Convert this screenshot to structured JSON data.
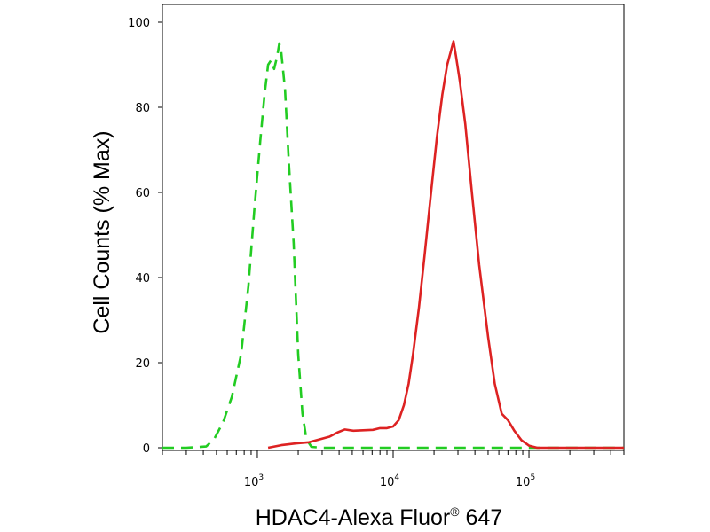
{
  "chart_data": {
    "type": "line",
    "xlabel": "HDAC4-Alexa Fluor",
    "xlabel_superscript": "®",
    "xlabel_suffix": " 647",
    "ylabel": "Cell Counts (% Max)",
    "x_scale": "log",
    "xlim": [
      200,
      500000
    ],
    "ylim": [
      0,
      100
    ],
    "y_ticks": [
      {
        "value": 0,
        "label": "0"
      },
      {
        "value": 20,
        "label": "20"
      },
      {
        "value": 40,
        "label": "40"
      },
      {
        "value": 60,
        "label": "60"
      },
      {
        "value": 80,
        "label": "80"
      },
      {
        "value": 100,
        "label": "100"
      }
    ],
    "x_ticks": [
      {
        "value": 1000,
        "base": "10",
        "exp": "3"
      },
      {
        "value": 10000,
        "base": "10",
        "exp": "4"
      },
      {
        "value": 100000,
        "base": "10",
        "exp": "5"
      }
    ],
    "series": [
      {
        "color": "#22cc22",
        "dash": "dashed",
        "points": [
          [
            200,
            0
          ],
          [
            300,
            0
          ],
          [
            420,
            0.3
          ],
          [
            480,
            2
          ],
          [
            560,
            6
          ],
          [
            650,
            12
          ],
          [
            760,
            22
          ],
          [
            860,
            38
          ],
          [
            950,
            56
          ],
          [
            1050,
            72
          ],
          [
            1130,
            83
          ],
          [
            1200,
            90
          ],
          [
            1260,
            91
          ],
          [
            1330,
            89
          ],
          [
            1400,
            92
          ],
          [
            1450,
            95
          ],
          [
            1500,
            93
          ],
          [
            1600,
            84
          ],
          [
            1700,
            68
          ],
          [
            1850,
            48
          ],
          [
            2000,
            22
          ],
          [
            2150,
            8
          ],
          [
            2300,
            2
          ],
          [
            2500,
            0.2
          ],
          [
            3000,
            0
          ],
          [
            10000,
            0
          ],
          [
            100000,
            0
          ],
          [
            500000,
            0
          ]
        ]
      },
      {
        "color": "#dd2222",
        "dash": "solid",
        "points": [
          [
            1200,
            0
          ],
          [
            1500,
            0.6
          ],
          [
            1900,
            1
          ],
          [
            2400,
            1.3
          ],
          [
            2900,
            2
          ],
          [
            3400,
            2.6
          ],
          [
            3900,
            3.6
          ],
          [
            4400,
            4.3
          ],
          [
            5100,
            4
          ],
          [
            6000,
            4.1
          ],
          [
            7100,
            4.2
          ],
          [
            8000,
            4.6
          ],
          [
            9000,
            4.6
          ],
          [
            10000,
            5
          ],
          [
            11000,
            6.5
          ],
          [
            12000,
            10
          ],
          [
            13000,
            15
          ],
          [
            14000,
            22
          ],
          [
            15500,
            33
          ],
          [
            17000,
            45
          ],
          [
            19000,
            60
          ],
          [
            21000,
            73
          ],
          [
            23000,
            83
          ],
          [
            25000,
            90
          ],
          [
            26500,
            93
          ],
          [
            27800,
            95.5
          ],
          [
            29000,
            92
          ],
          [
            31000,
            86
          ],
          [
            34000,
            76
          ],
          [
            38000,
            60
          ],
          [
            43000,
            43
          ],
          [
            50000,
            26
          ],
          [
            56000,
            15
          ],
          [
            63000,
            8
          ],
          [
            70000,
            6.5
          ],
          [
            78000,
            4
          ],
          [
            88000,
            1.8
          ],
          [
            100000,
            0.5
          ],
          [
            115000,
            0
          ],
          [
            500000,
            0
          ]
        ]
      }
    ]
  }
}
